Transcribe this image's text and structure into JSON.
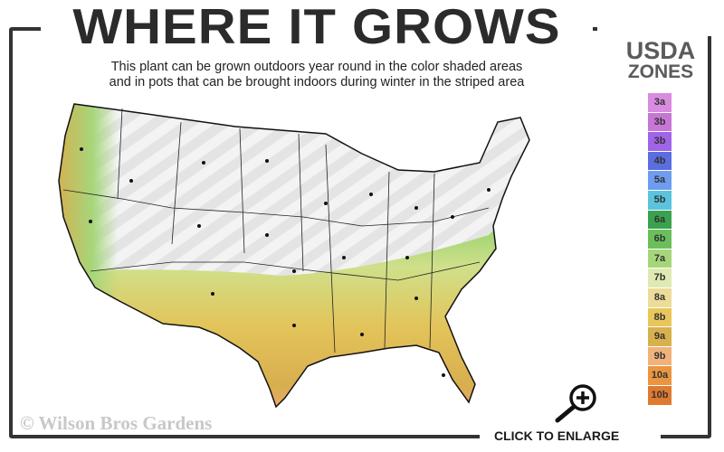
{
  "header": {
    "title": "WHERE IT GROWS",
    "subtitle_line1": "This plant can be grown outdoors year round in the color shaded areas",
    "subtitle_line2": "and in pots that can be brought indoors during winter in the striped area"
  },
  "legend": {
    "title_line1": "USDA",
    "title_line2": "ZONES",
    "zones": [
      {
        "label": "3a",
        "color": "#d98be0"
      },
      {
        "label": "3b",
        "color": "#c776d6"
      },
      {
        "label": "3b",
        "color": "#a064e8"
      },
      {
        "label": "4b",
        "color": "#5a6ee0"
      },
      {
        "label": "5a",
        "color": "#6f9cf0"
      },
      {
        "label": "5b",
        "color": "#5bc4dc"
      },
      {
        "label": "6a",
        "color": "#3aa24e"
      },
      {
        "label": "6b",
        "color": "#6bbf5a"
      },
      {
        "label": "7a",
        "color": "#a6d67a"
      },
      {
        "label": "7b",
        "color": "#dfeab2"
      },
      {
        "label": "8a",
        "color": "#ecdc98"
      },
      {
        "label": "8b",
        "color": "#e8c659"
      },
      {
        "label": "9a",
        "color": "#d8b04e"
      },
      {
        "label": "9b",
        "color": "#f0b27a"
      },
      {
        "label": "10a",
        "color": "#ea9540"
      },
      {
        "label": "10b",
        "color": "#e07a30"
      }
    ]
  },
  "footer": {
    "copyright": "© Wilson Bros Gardens",
    "enlarge_label": "CLICK TO ENLARGE"
  },
  "icons": {
    "enlarge": "magnifier-plus-icon"
  }
}
